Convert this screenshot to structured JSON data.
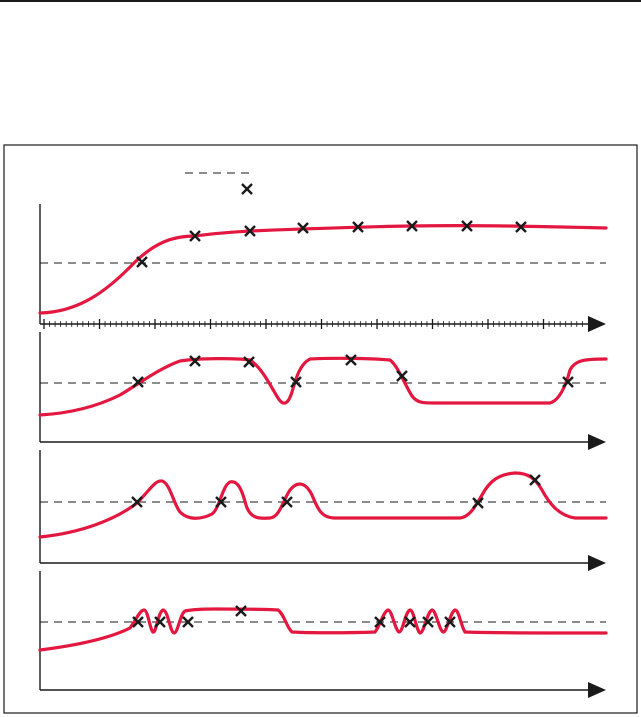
{
  "colors": {
    "curve": "#e3173f",
    "axis": "#1a1a1a",
    "marker": "#1a1a1a",
    "threshold": "#1a1a1a",
    "frame": "#1a1a1a"
  },
  "legend": {
    "items": [
      {
        "icon": "dashed-line-icon"
      },
      {
        "icon": "cross-marker-icon"
      }
    ]
  },
  "panels": [
    {
      "id": "panel-1",
      "axis_ticks": true
    },
    {
      "id": "panel-2",
      "axis_ticks": false
    },
    {
      "id": "panel-3",
      "axis_ticks": false
    },
    {
      "id": "panel-4",
      "axis_ticks": false
    }
  ]
}
